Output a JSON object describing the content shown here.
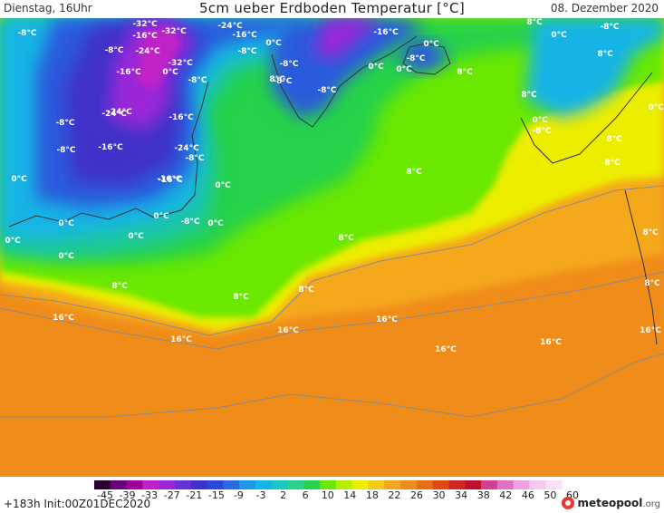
{
  "header": {
    "left": "Dienstag, 16Uhr",
    "title": "5cm ueber Erdboden Temperatur [°C]",
    "right": "08. Dezember 2020"
  },
  "footer": {
    "left": "+183h  Init:00Z01DEC2020",
    "logo_main": "meteopool",
    "logo_suffix": ".org"
  },
  "colors": {
    "ocean_south": "#f08c1a",
    "ocean_mid": "#f5a81e",
    "yellow_band": "#eded00",
    "lime": "#6ae800",
    "green": "#28d24a",
    "teal": "#1cc8a0",
    "cyan": "#14b4e6",
    "blue": "#2a5adc",
    "deep_blue": "#4030c8",
    "purple": "#9a28d8",
    "magenta": "#d040e0",
    "coast": "#333333",
    "contour": "#8c8c8c"
  },
  "colorscale": {
    "labels": [
      "-45",
      "-39",
      "-33",
      "-27",
      "-21",
      "-15",
      "-9",
      "-3",
      "2",
      "6",
      "10",
      "14",
      "18",
      "22",
      "26",
      "30",
      "34",
      "38",
      "42",
      "46",
      "50",
      "60"
    ],
    "colors": [
      "#2a0030",
      "#6a0078",
      "#a0009a",
      "#c020c8",
      "#9a28d8",
      "#6a30d8",
      "#4030c8",
      "#2a48dc",
      "#2a6ae0",
      "#1c96e6",
      "#14b4e6",
      "#18c8c8",
      "#28d28a",
      "#28d24a",
      "#6ae800",
      "#b4ee00",
      "#eded00",
      "#f5c81e",
      "#f5a81e",
      "#f08c1a",
      "#e86e14",
      "#e04a10",
      "#d02820",
      "#c0102c",
      "#d04090",
      "#e070c0",
      "#f0a0e0",
      "#f8c8f0",
      "#fce0f8"
    ]
  },
  "map_labels": [
    {
      "text": "-8°C"
    },
    {
      "text": "-32°C"
    },
    {
      "text": "-16°C"
    },
    {
      "text": "-32°C"
    },
    {
      "text": "-24°C"
    },
    {
      "text": "-16°C"
    },
    {
      "text": "0°C"
    },
    {
      "text": "-24°C"
    },
    {
      "text": "-8°C"
    },
    {
      "text": "-16°C"
    },
    {
      "text": "0°C"
    },
    {
      "text": "8°C"
    },
    {
      "text": "0°C"
    },
    {
      "text": "0°C"
    },
    {
      "text": "-8°C"
    },
    {
      "text": "-24°C"
    },
    {
      "text": "-8°C"
    },
    {
      "text": "-8°C"
    },
    {
      "text": "-32°C"
    },
    {
      "text": "-8°C"
    },
    {
      "text": "-8°C"
    },
    {
      "text": "0°C"
    },
    {
      "text": "-8°C"
    },
    {
      "text": "8°C"
    },
    {
      "text": "8°C"
    },
    {
      "text": "-16°C"
    },
    {
      "text": "-16°C"
    },
    {
      "text": "-8°C"
    },
    {
      "text": "-8°C"
    },
    {
      "text": "-8°C"
    },
    {
      "text": "-24°C"
    },
    {
      "text": "-16°C"
    },
    {
      "text": "8°C"
    },
    {
      "text": "0°C"
    },
    {
      "text": "-8°C"
    },
    {
      "text": "-16°C"
    },
    {
      "text": "-24°C"
    },
    {
      "text": "0°C"
    },
    {
      "text": "8°C"
    },
    {
      "text": "0°C"
    },
    {
      "text": "-8°C"
    },
    {
      "text": "0°C"
    },
    {
      "text": "8°C"
    },
    {
      "text": "8°C"
    },
    {
      "text": "-16°C"
    },
    {
      "text": "0°C"
    },
    {
      "text": "0°C"
    },
    {
      "text": "-8°C"
    },
    {
      "text": "0°C"
    },
    {
      "text": "0°C"
    },
    {
      "text": "8°C"
    },
    {
      "text": "0°C"
    },
    {
      "text": "0°C"
    },
    {
      "text": "8°C"
    },
    {
      "text": "0°C"
    },
    {
      "text": "8°C"
    },
    {
      "text": "8°C"
    },
    {
      "text": "8°C"
    },
    {
      "text": "8°C"
    },
    {
      "text": "8°C"
    },
    {
      "text": "16°C"
    },
    {
      "text": "16°C"
    },
    {
      "text": "16°C"
    },
    {
      "text": "16°C"
    },
    {
      "text": "16°C"
    },
    {
      "text": "16°C"
    },
    {
      "text": "16°C"
    }
  ]
}
